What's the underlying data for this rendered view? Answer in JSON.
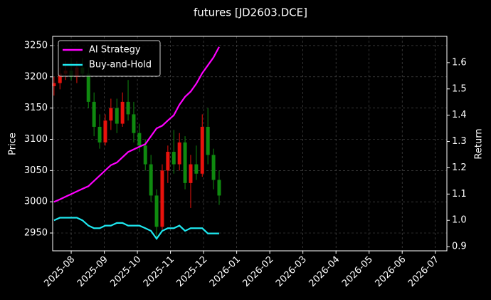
{
  "chart_data": {
    "type": "candlestick",
    "title": "futures [JD2603.DCE]",
    "y_label": "Price",
    "y2_label": "Return",
    "xlim": [
      -0.56,
      11.35
    ],
    "xticks": [
      {
        "value": 0,
        "label": "2025-08"
      },
      {
        "value": 1,
        "label": "2025-09"
      },
      {
        "value": 2,
        "label": "2025-10"
      },
      {
        "value": 3,
        "label": "2025-11"
      },
      {
        "value": 4,
        "label": "2025-12"
      },
      {
        "value": 5,
        "label": "2026-01"
      },
      {
        "value": 6,
        "label": "2026-02"
      },
      {
        "value": 7,
        "label": "2026-03"
      },
      {
        "value": 8,
        "label": "2026-04"
      },
      {
        "value": 9,
        "label": "2026-05"
      },
      {
        "value": 10,
        "label": "2026-06"
      },
      {
        "value": 11,
        "label": "2026-07"
      }
    ],
    "ylim": [
      2921.5,
      3264.8
    ],
    "yticks": [
      2950,
      3000,
      3050,
      3100,
      3150,
      3200,
      3250
    ],
    "y2lim": [
      0.884,
      1.7
    ],
    "y2ticks": [
      0.9,
      {
        "value": 1,
        "label": "1.0"
      },
      1.1,
      1.2,
      1.3,
      1.4,
      1.5,
      1.6
    ],
    "grid": true,
    "legend": "upper-left",
    "up_color": "#e8120c",
    "down_color": "#0f8a0f",
    "x": [
      -0.52,
      -0.34,
      -0.17,
      0,
      0.17,
      0.34,
      0.52,
      0.69,
      0.86,
      1.03,
      1.2,
      1.38,
      1.55,
      1.72,
      1.89,
      2.06,
      2.24,
      2.41,
      2.58,
      2.75,
      2.92,
      3.1,
      3.27,
      3.44,
      3.61,
      3.78,
      3.96,
      4.13,
      4.3,
      4.47
    ],
    "open": [
      3185,
      3190,
      3205,
      3210,
      3200,
      3215,
      3205,
      3160,
      3120,
      3095,
      3130,
      3150,
      3125,
      3160,
      3140,
      3110,
      3090,
      3060,
      3010,
      2960,
      3050,
      3080,
      3060,
      3095,
      3030,
      3060,
      3045,
      3120,
      3075,
      3035
    ],
    "high": [
      3200,
      3215,
      3225,
      3230,
      3225,
      3230,
      3215,
      3175,
      3140,
      3140,
      3165,
      3165,
      3175,
      3195,
      3160,
      3125,
      3100,
      3075,
      3020,
      3060,
      3090,
      3115,
      3110,
      3105,
      3075,
      3090,
      3140,
      3150,
      3085,
      3050
    ],
    "low": [
      3170,
      3180,
      3195,
      3195,
      3190,
      3200,
      3150,
      3105,
      3085,
      3090,
      3115,
      3110,
      3120,
      3130,
      3095,
      3080,
      3050,
      3000,
      2940,
      2955,
      3030,
      3045,
      3050,
      3020,
      2990,
      3035,
      3040,
      3060,
      3020,
      2995
    ],
    "close": [
      3190,
      3205,
      3210,
      3200,
      3215,
      3205,
      3160,
      3120,
      3095,
      3130,
      3150,
      3125,
      3160,
      3140,
      3110,
      3090,
      3060,
      3010,
      2960,
      3050,
      3080,
      3060,
      3095,
      3030,
      3060,
      3045,
      3120,
      3075,
      3035,
      3010
    ],
    "series": [
      {
        "name": "AI Strategy",
        "color": "#ff00ff",
        "axis": "y2",
        "values": [
          1.07,
          1.08,
          1.09,
          1.1,
          1.11,
          1.12,
          1.13,
          1.15,
          1.17,
          1.19,
          1.21,
          1.22,
          1.24,
          1.26,
          1.27,
          1.28,
          1.29,
          1.32,
          1.35,
          1.36,
          1.38,
          1.4,
          1.44,
          1.47,
          1.49,
          1.52,
          1.56,
          1.59,
          1.62,
          1.66
        ]
      },
      {
        "name": "Buy-and-Hold",
        "color": "#1ee8f0",
        "axis": "y2",
        "values": [
          1.0,
          1.01,
          1.01,
          1.01,
          1.01,
          1.0,
          0.98,
          0.97,
          0.97,
          0.98,
          0.98,
          0.99,
          0.99,
          0.98,
          0.98,
          0.98,
          0.97,
          0.96,
          0.93,
          0.96,
          0.97,
          0.97,
          0.98,
          0.96,
          0.97,
          0.97,
          0.97,
          0.95,
          0.95,
          0.95
        ]
      }
    ]
  }
}
